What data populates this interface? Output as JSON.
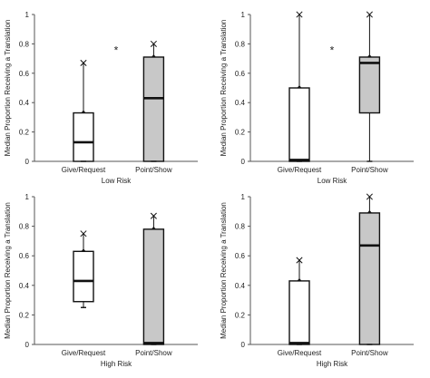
{
  "chart_data": [
    {
      "type": "box",
      "ylabel": "Median Proportion Receiving a Translation",
      "xlabel": "Low Risk",
      "ylim": [
        0,
        1
      ],
      "yticks": [
        "0",
        "0.2",
        "0.4",
        "0.6",
        "0.8",
        "1"
      ],
      "categories": [
        "Give/Request",
        "Point/Show"
      ],
      "boxes": [
        {
          "fill": "#ffffff",
          "min": 0.0,
          "q1": 0.0,
          "median": 0.13,
          "q3": 0.33,
          "max": 0.67
        },
        {
          "fill": "#c8c8c8",
          "min": 0.0,
          "q1": 0.0,
          "median": 0.43,
          "q3": 0.71,
          "max": 0.8
        }
      ],
      "annotation": "*"
    },
    {
      "type": "box",
      "ylabel": "Median Proportion Receiving a Translation",
      "xlabel": "Low Risk",
      "ylim": [
        0,
        1
      ],
      "yticks": [
        "0",
        "0.2",
        "0.4",
        "0.6",
        "0.8",
        "1"
      ],
      "categories": [
        "Give/Request",
        "Point/Show"
      ],
      "boxes": [
        {
          "fill": "#ffffff",
          "min": 0.0,
          "q1": 0.0,
          "median": 0.01,
          "q3": 0.5,
          "max": 1.0
        },
        {
          "fill": "#c8c8c8",
          "min": 0.0,
          "q1": 0.33,
          "median": 0.67,
          "q3": 0.71,
          "max": 1.0
        }
      ],
      "annotation": "*"
    },
    {
      "type": "box",
      "ylabel": "Median Proportion Receiving a Translation",
      "xlabel": "High Risk",
      "ylim": [
        0,
        1
      ],
      "yticks": [
        "0",
        "0.2",
        "0.4",
        "0.6",
        "0.8",
        "1"
      ],
      "categories": [
        "Give/Request",
        "Point/Show"
      ],
      "boxes": [
        {
          "fill": "#ffffff",
          "min": 0.25,
          "q1": 0.29,
          "median": 0.43,
          "q3": 0.63,
          "max": 0.75
        },
        {
          "fill": "#c8c8c8",
          "min": 0.0,
          "q1": 0.0,
          "median": 0.01,
          "q3": 0.78,
          "max": 0.87
        }
      ],
      "annotation": ""
    },
    {
      "type": "box",
      "ylabel": "Median Proportion Receiving a Translation",
      "xlabel": "High Risk",
      "ylim": [
        0,
        1
      ],
      "yticks": [
        "0",
        "0.2",
        "0.4",
        "0.6",
        "0.8",
        "1"
      ],
      "categories": [
        "Give/Request",
        "Point/Show"
      ],
      "boxes": [
        {
          "fill": "#ffffff",
          "min": 0.0,
          "q1": 0.0,
          "median": 0.01,
          "q3": 0.43,
          "max": 0.57
        },
        {
          "fill": "#c8c8c8",
          "min": 0.0,
          "q1": 0.0,
          "median": 0.67,
          "q3": 0.89,
          "max": 1.0
        }
      ],
      "annotation": ""
    }
  ]
}
